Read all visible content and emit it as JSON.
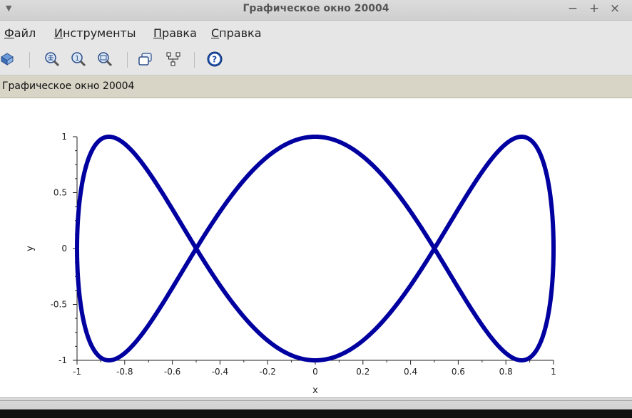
{
  "window": {
    "title": "Графическое окно 20004",
    "controls": {
      "minimize": "−",
      "maximize": "+",
      "close": "×"
    }
  },
  "menu": {
    "items": [
      {
        "label": "Файл",
        "underline": "Ф"
      },
      {
        "label": "Инструменты",
        "underline": "И"
      },
      {
        "label": "Правка",
        "underline": "П"
      },
      {
        "label": "Справка",
        "underline": "С"
      }
    ]
  },
  "toolbar": {
    "icons": [
      "rotate-icon",
      "zoom-icon",
      "zoom-reset-icon",
      "zoom-region-icon",
      "datatip-icon",
      "editor-icon",
      "help-icon"
    ],
    "help_glyph": "?"
  },
  "subtitle": "Графическое окно 20004",
  "chart_data": {
    "type": "line",
    "title": "",
    "xlabel": "x",
    "ylabel": "y",
    "xlim": [
      -1,
      1
    ],
    "ylim": [
      -1,
      1
    ],
    "xticks": [
      "-1",
      "-0.8",
      "-0.6",
      "-0.4",
      "-0.2",
      "0",
      "0.2",
      "0.4",
      "0.6",
      "0.8",
      "1"
    ],
    "yticks": [
      "-1",
      "-0.5",
      "0",
      "0.5",
      "1"
    ],
    "curve": "lissajous x = sin(t), y = cos(3t)",
    "color": "#0000a0",
    "grid": false,
    "legend": "none"
  }
}
